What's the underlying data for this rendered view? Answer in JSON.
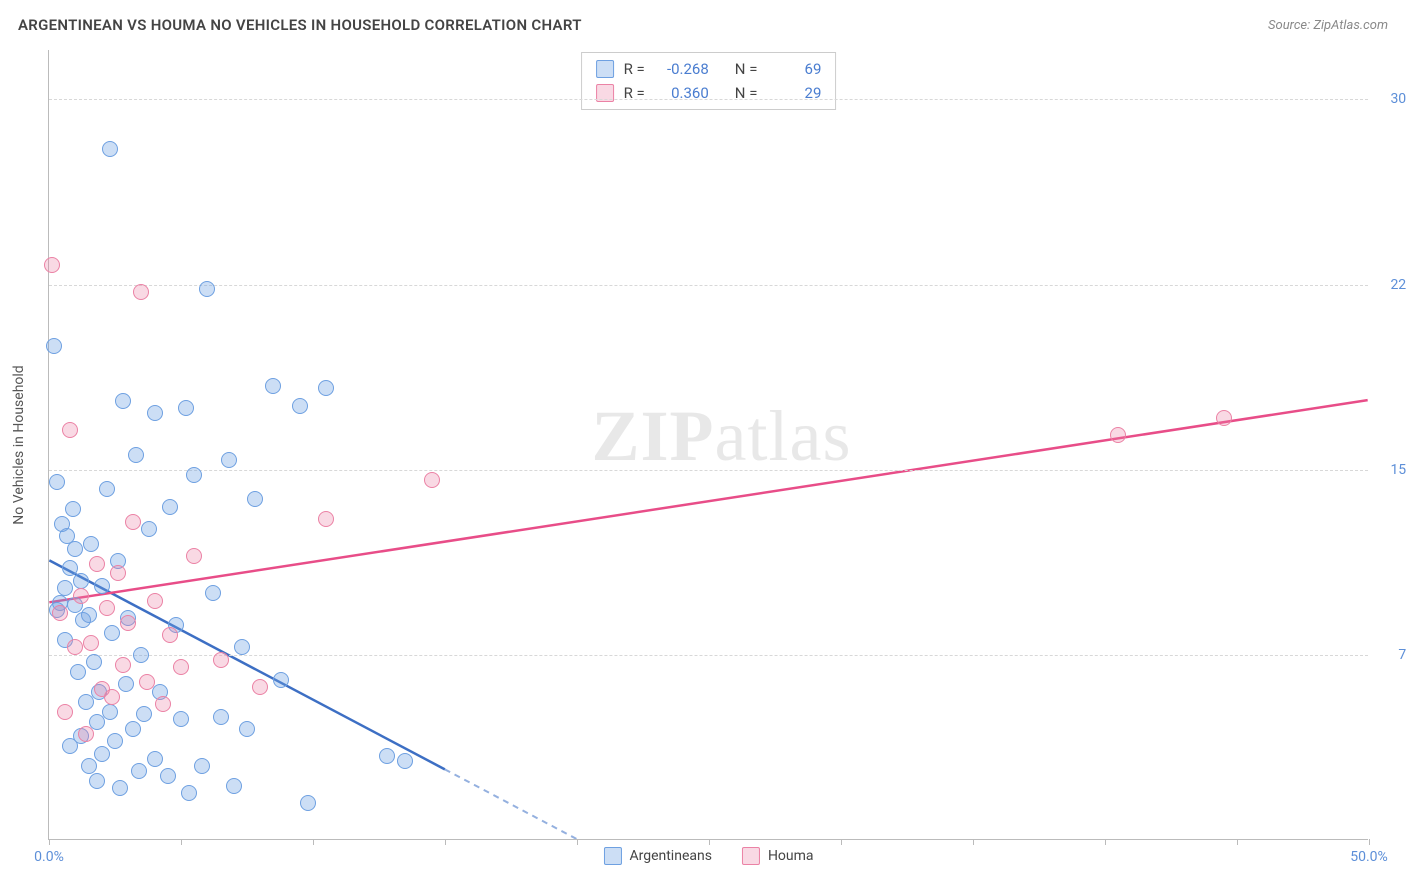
{
  "header": {
    "title": "ARGENTINEAN VS HOUMA NO VEHICLES IN HOUSEHOLD CORRELATION CHART",
    "source_prefix": "Source: ",
    "source_name": "ZipAtlas.com"
  },
  "chart": {
    "type": "scatter",
    "y_axis_label": "No Vehicles in Household",
    "xlim": [
      0,
      50
    ],
    "ylim": [
      0,
      32
    ],
    "y_ticks": [
      7.5,
      15.0,
      22.5,
      30.0
    ],
    "y_tick_labels": [
      "7.5%",
      "15.0%",
      "22.5%",
      "30.0%"
    ],
    "x_ticks": [
      0,
      5,
      10,
      15,
      20,
      25,
      30,
      35,
      40,
      45,
      50
    ],
    "x_tick_labels": {
      "0": "0.0%",
      "50": "50.0%"
    },
    "background_color": "#ffffff",
    "grid_color": "#d8d8d8",
    "axis_tick_label_color": "#5d8fd8",
    "point_radius": 8,
    "series": [
      {
        "name": "Argentineans",
        "fill_color": "rgba(110,160,225,0.35)",
        "stroke_color": "#6ea0e1",
        "trend_color": "#3d6fc4",
        "R": "-0.268",
        "N": "69",
        "trend": {
          "x1": 0,
          "y1": 11.3,
          "x2": 20,
          "y2": 0,
          "dashed_from_x": 15
        },
        "points": [
          [
            0.2,
            20.0
          ],
          [
            0.3,
            14.5
          ],
          [
            0.3,
            9.3
          ],
          [
            0.4,
            9.6
          ],
          [
            0.5,
            12.8
          ],
          [
            0.6,
            10.2
          ],
          [
            0.6,
            8.1
          ],
          [
            0.7,
            12.3
          ],
          [
            0.8,
            11.0
          ],
          [
            0.8,
            3.8
          ],
          [
            0.9,
            13.4
          ],
          [
            1.0,
            11.8
          ],
          [
            1.0,
            9.5
          ],
          [
            1.1,
            6.8
          ],
          [
            1.2,
            10.5
          ],
          [
            1.2,
            4.2
          ],
          [
            1.3,
            8.9
          ],
          [
            1.4,
            5.6
          ],
          [
            1.5,
            9.1
          ],
          [
            1.5,
            3.0
          ],
          [
            1.6,
            12.0
          ],
          [
            1.7,
            7.2
          ],
          [
            1.8,
            4.8
          ],
          [
            1.8,
            2.4
          ],
          [
            1.9,
            6.0
          ],
          [
            2.0,
            10.3
          ],
          [
            2.0,
            3.5
          ],
          [
            2.2,
            14.2
          ],
          [
            2.3,
            5.2
          ],
          [
            2.4,
            8.4
          ],
          [
            2.5,
            4.0
          ],
          [
            2.6,
            11.3
          ],
          [
            2.7,
            2.1
          ],
          [
            2.8,
            17.8
          ],
          [
            2.9,
            6.3
          ],
          [
            3.0,
            9.0
          ],
          [
            3.2,
            4.5
          ],
          [
            3.3,
            15.6
          ],
          [
            3.4,
            2.8
          ],
          [
            3.5,
            7.5
          ],
          [
            3.6,
            5.1
          ],
          [
            3.8,
            12.6
          ],
          [
            4.0,
            17.3
          ],
          [
            4.0,
            3.3
          ],
          [
            4.2,
            6.0
          ],
          [
            4.5,
            2.6
          ],
          [
            4.6,
            13.5
          ],
          [
            4.8,
            8.7
          ],
          [
            5.0,
            4.9
          ],
          [
            5.2,
            17.5
          ],
          [
            5.3,
            1.9
          ],
          [
            5.5,
            14.8
          ],
          [
            5.8,
            3.0
          ],
          [
            6.0,
            22.3
          ],
          [
            6.2,
            10.0
          ],
          [
            6.5,
            5.0
          ],
          [
            6.8,
            15.4
          ],
          [
            7.0,
            2.2
          ],
          [
            7.3,
            7.8
          ],
          [
            7.8,
            13.8
          ],
          [
            8.5,
            18.4
          ],
          [
            8.8,
            6.5
          ],
          [
            9.5,
            17.6
          ],
          [
            9.8,
            1.5
          ],
          [
            10.5,
            18.3
          ],
          [
            2.3,
            28.0
          ],
          [
            13.5,
            3.2
          ],
          [
            12.8,
            3.4
          ],
          [
            7.5,
            4.5
          ]
        ]
      },
      {
        "name": "Houma",
        "fill_color": "rgba(235,130,165,0.30)",
        "stroke_color": "#eb82a5",
        "trend_color": "#e84d88",
        "R": "0.360",
        "N": "29",
        "trend": {
          "x1": 0,
          "y1": 9.6,
          "x2": 50,
          "y2": 17.8,
          "dashed_from_x": 50
        },
        "points": [
          [
            0.1,
            23.3
          ],
          [
            0.4,
            9.2
          ],
          [
            0.6,
            5.2
          ],
          [
            0.8,
            16.6
          ],
          [
            1.0,
            7.8
          ],
          [
            1.2,
            9.9
          ],
          [
            1.4,
            4.3
          ],
          [
            1.6,
            8.0
          ],
          [
            1.8,
            11.2
          ],
          [
            2.0,
            6.1
          ],
          [
            2.2,
            9.4
          ],
          [
            2.4,
            5.8
          ],
          [
            2.6,
            10.8
          ],
          [
            2.8,
            7.1
          ],
          [
            3.0,
            8.8
          ],
          [
            3.2,
            12.9
          ],
          [
            3.5,
            22.2
          ],
          [
            3.7,
            6.4
          ],
          [
            4.0,
            9.7
          ],
          [
            4.3,
            5.5
          ],
          [
            4.6,
            8.3
          ],
          [
            5.0,
            7.0
          ],
          [
            5.5,
            11.5
          ],
          [
            6.5,
            7.3
          ],
          [
            8.0,
            6.2
          ],
          [
            10.5,
            13.0
          ],
          [
            14.5,
            14.6
          ],
          [
            40.5,
            16.4
          ],
          [
            44.5,
            17.1
          ]
        ]
      }
    ],
    "legend": {
      "stats_rows": [
        {
          "swatch": 0,
          "r_label": "R =",
          "n_label": "N ="
        },
        {
          "swatch": 1,
          "r_label": "R =",
          "n_label": "N ="
        }
      ]
    },
    "watermark": {
      "zip": "ZIP",
      "atlas": "atlas"
    }
  }
}
